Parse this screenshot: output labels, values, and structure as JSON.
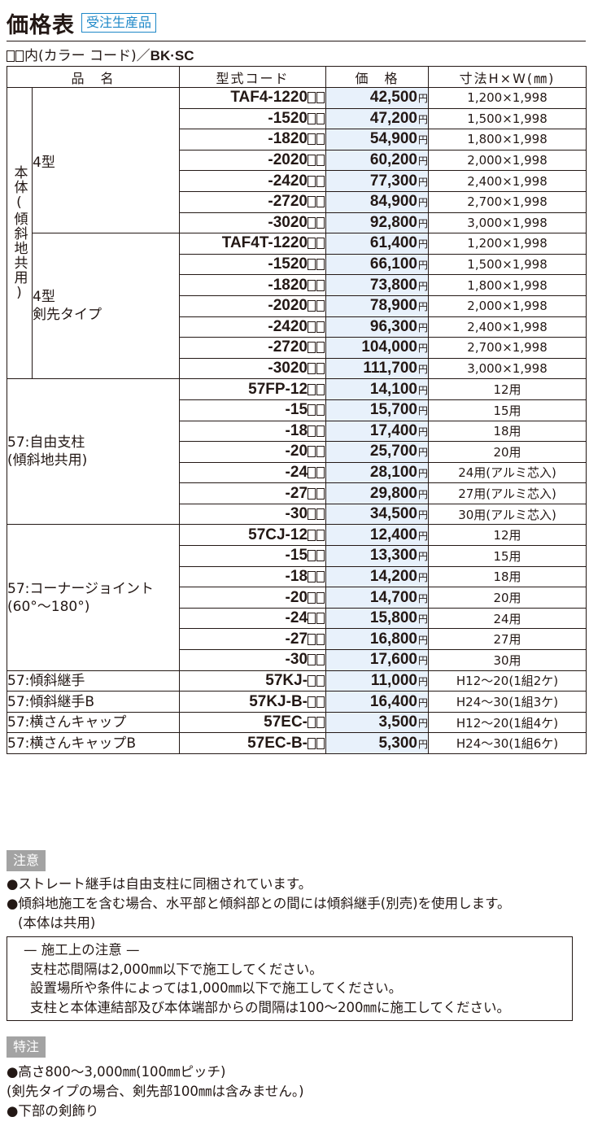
{
  "header": {
    "title": "価格表",
    "badge": "受注生産品",
    "color_note_prefix": "内(カラー コード)／",
    "color_note_codes": "BK·SC"
  },
  "table": {
    "columns": [
      "品　名",
      "型式コード",
      "価　格",
      "寸法H×W(㎜)"
    ],
    "yen": "円",
    "body_group_label": "本体(傾斜地共用)",
    "groups": [
      {
        "label": "4型",
        "rows": [
          {
            "code": "TAF4-1220",
            "price": "42,500",
            "dim": "1,200×1,998"
          },
          {
            "code": "-1520",
            "price": "47,200",
            "dim": "1,500×1,998"
          },
          {
            "code": "-1820",
            "price": "54,900",
            "dim": "1,800×1,998"
          },
          {
            "code": "-2020",
            "price": "60,200",
            "dim": "2,000×1,998"
          },
          {
            "code": "-2420",
            "price": "77,300",
            "dim": "2,400×1,998"
          },
          {
            "code": "-2720",
            "price": "84,900",
            "dim": "2,700×1,998"
          },
          {
            "code": "-3020",
            "price": "92,800",
            "dim": "3,000×1,998"
          }
        ]
      },
      {
        "label_1": "4型",
        "label_2": "剣先タイプ",
        "rows": [
          {
            "code": "TAF4T-1220",
            "price": "61,400",
            "dim": "1,200×1,998"
          },
          {
            "code": "-1520",
            "price": "66,100",
            "dim": "1,500×1,998"
          },
          {
            "code": "-1820",
            "price": "73,800",
            "dim": "1,800×1,998"
          },
          {
            "code": "-2020",
            "price": "78,900",
            "dim": "2,000×1,998"
          },
          {
            "code": "-2420",
            "price": "96,300",
            "dim": "2,400×1,998"
          },
          {
            "code": "-2720",
            "price": "104,000",
            "dim": "2,700×1,998"
          },
          {
            "code": "-3020",
            "price": "111,700",
            "dim": "3,000×1,998"
          }
        ]
      }
    ],
    "post": {
      "label_1": "57:自由支柱",
      "label_2": "(傾斜地共用)",
      "rows": [
        {
          "code": "57FP-12",
          "price": "14,100",
          "dim": "12用"
        },
        {
          "code": "-15",
          "price": "15,700",
          "dim": "15用"
        },
        {
          "code": "-18",
          "price": "17,400",
          "dim": "18用"
        },
        {
          "code": "-20",
          "price": "25,700",
          "dim": "20用"
        },
        {
          "code": "-24",
          "price": "28,100",
          "dim": "24用(アルミ芯入)"
        },
        {
          "code": "-27",
          "price": "29,800",
          "dim": "27用(アルミ芯入)"
        },
        {
          "code": "-30",
          "price": "34,500",
          "dim": "30用(アルミ芯入)"
        }
      ]
    },
    "corner": {
      "label_1": "57:コーナージョイント",
      "label_2": "(60°～180°)",
      "rows": [
        {
          "code": "57CJ-12",
          "price": "12,400",
          "dim": "12用"
        },
        {
          "code": "-15",
          "price": "13,300",
          "dim": "15用"
        },
        {
          "code": "-18",
          "price": "14,200",
          "dim": "18用"
        },
        {
          "code": "-20",
          "price": "14,700",
          "dim": "20用"
        },
        {
          "code": "-24",
          "price": "15,800",
          "dim": "24用"
        },
        {
          "code": "-27",
          "price": "16,800",
          "dim": "27用"
        },
        {
          "code": "-30",
          "price": "17,600",
          "dim": "30用"
        }
      ]
    },
    "singles": [
      {
        "name": "57:傾斜継手",
        "code": "57KJ-",
        "price": "11,000",
        "dim": "H12～20(1組2ケ)"
      },
      {
        "name": "57:傾斜継手B",
        "code": "57KJ-B-",
        "price": "16,400",
        "dim": "H24～30(1組3ケ)"
      },
      {
        "name": "57:横さんキャップ",
        "code": "57EC-",
        "price": "3,500",
        "dim": "H12～20(1組4ケ)"
      },
      {
        "name": "57:横さんキャップB",
        "code": "57EC-B-",
        "price": "5,300",
        "dim": "H24～30(1組6ケ)"
      }
    ]
  },
  "caution": {
    "label": "注意",
    "line1": "●ストレート継手は自由支柱に同梱されています。",
    "line2": "●傾斜地施工を含む場合、水平部と傾斜部との間には傾斜継手(別売)を使用します。",
    "line3": "(本体は共用)"
  },
  "install_box": {
    "title": "— 施工上の注意 —",
    "line1": "支柱芯間隔は2,000㎜以下で施工してください。",
    "line2": "設置場所や条件によっては1,000㎜以下で施工してください。",
    "line3": "支柱と本体連結部及び本体端部からの間隔は100～200㎜に施工してください。"
  },
  "special": {
    "label": "特注",
    "line1": "●高さ800～3,000㎜(100㎜ピッチ)",
    "line2": "(剣先タイプの場合、剣先部100㎜は含みません。)",
    "line3": "●下部の剣飾り"
  }
}
